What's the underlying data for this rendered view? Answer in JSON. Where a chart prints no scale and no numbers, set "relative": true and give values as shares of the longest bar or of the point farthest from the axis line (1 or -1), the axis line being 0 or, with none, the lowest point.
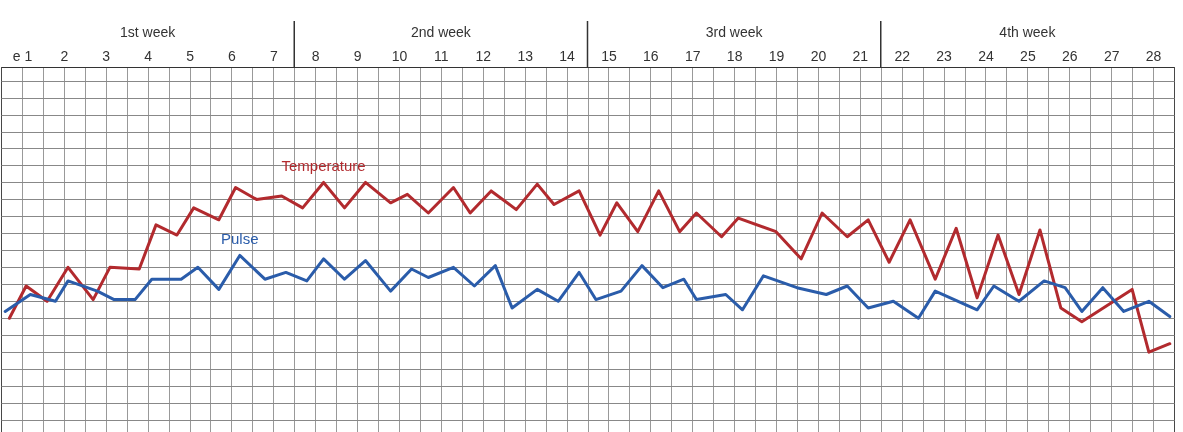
{
  "chart_data": {
    "type": "line",
    "relative": true,
    "grid": true,
    "xlim": [
      0.5,
      28.5
    ],
    "xticks": [
      {
        "value": 0.5,
        "label": null
      },
      {
        "value": 1,
        "label": "e 1"
      },
      {
        "value": 1.5,
        "label": null
      },
      2,
      {
        "value": 2.5,
        "label": null
      },
      3,
      {
        "value": 3.5,
        "label": null
      },
      4,
      {
        "value": 4.5,
        "label": null
      },
      5,
      {
        "value": 5.5,
        "label": null
      },
      6,
      {
        "value": 6.5,
        "label": null
      },
      7,
      {
        "value": 7.5,
        "label": null
      },
      8,
      {
        "value": 8.5,
        "label": null
      },
      9,
      {
        "value": 9.5,
        "label": null
      },
      10,
      {
        "value": 10.5,
        "label": null
      },
      11,
      {
        "value": 11.5,
        "label": null
      },
      12,
      {
        "value": 12.5,
        "label": null
      },
      13,
      {
        "value": 13.5,
        "label": null
      },
      14,
      {
        "value": 14.5,
        "label": null
      },
      15,
      {
        "value": 15.5,
        "label": null
      },
      16,
      {
        "value": 16.5,
        "label": null
      },
      17,
      {
        "value": 17.5,
        "label": null
      },
      18,
      {
        "value": 18.5,
        "label": null
      },
      19,
      {
        "value": 19.5,
        "label": null
      },
      20,
      {
        "value": 20.5,
        "label": null
      },
      21,
      {
        "value": 21.5,
        "label": null
      },
      22,
      {
        "value": 22.5,
        "label": null
      },
      23,
      {
        "value": 23.5,
        "label": null
      },
      24,
      {
        "value": 24.5,
        "label": null
      },
      25,
      {
        "value": 25.5,
        "label": null
      },
      26,
      {
        "value": 26.5,
        "label": null
      },
      27,
      {
        "value": 27.5,
        "label": null
      },
      28,
      {
        "value": 28.5,
        "label": null
      }
    ],
    "annotations": [
      "1st week",
      "2nd week",
      "3rd week",
      "4th week"
    ],
    "series": [
      {
        "name": "Temperature",
        "color": "#b22a2e",
        "x": [
          0.7,
          1.1,
          1.6,
          2.1,
          2.7,
          3.1,
          3.8,
          4.2,
          4.7,
          5.1,
          5.7,
          6.1,
          6.6,
          7.2,
          7.7,
          8.2,
          8.7,
          9.2,
          9.8,
          10.2,
          10.7,
          11.3,
          11.7,
          12.2,
          12.8,
          13.3,
          13.7,
          14.3,
          14.8,
          15.2,
          15.7,
          16.2,
          16.7,
          17.1,
          17.7,
          18.1,
          19.0,
          19.6,
          20.1,
          20.7,
          21.2,
          21.7,
          22.2,
          22.8,
          23.3,
          23.8,
          24.3,
          24.8,
          25.3,
          25.8,
          26.3,
          27.5,
          27.9,
          28.4
        ],
        "values": [
          0.2,
          0.39,
          0.3,
          0.5,
          0.31,
          0.5,
          0.49,
          0.75,
          0.69,
          0.85,
          0.78,
          0.97,
          0.9,
          0.92,
          0.85,
          1.0,
          0.85,
          1.0,
          0.88,
          0.93,
          0.82,
          0.97,
          0.82,
          0.95,
          0.84,
          0.99,
          0.87,
          0.95,
          0.69,
          0.88,
          0.71,
          0.95,
          0.71,
          0.82,
          0.68,
          0.79,
          0.71,
          0.55,
          0.82,
          0.68,
          0.78,
          0.53,
          0.78,
          0.43,
          0.73,
          0.32,
          0.69,
          0.34,
          0.72,
          0.26,
          0.18,
          0.37,
          0,
          0.05
        ]
      },
      {
        "name": "Pulse",
        "color": "#2a5caa",
        "x": [
          0.6,
          1.2,
          1.8,
          2.1,
          2.8,
          3.2,
          3.7,
          4.1,
          4.8,
          5.2,
          5.7,
          6.2,
          6.8,
          7.3,
          7.8,
          8.2,
          8.7,
          9.2,
          9.8,
          10.3,
          10.7,
          11.3,
          11.8,
          12.3,
          12.7,
          13.3,
          13.8,
          14.3,
          14.7,
          15.3,
          15.8,
          16.3,
          16.8,
          17.1,
          17.8,
          18.2,
          18.7,
          19.5,
          20.2,
          20.7,
          21.2,
          21.8,
          22.4,
          22.8,
          23.8,
          24.2,
          24.8,
          25.4,
          25.9,
          26.3,
          26.8,
          27.3,
          27.9,
          28.4
        ],
        "values": [
          0.24,
          0.34,
          0.3,
          0.42,
          0.36,
          0.31,
          0.31,
          0.43,
          0.43,
          0.5,
          0.37,
          0.57,
          0.43,
          0.47,
          0.42,
          0.55,
          0.43,
          0.54,
          0.36,
          0.49,
          0.44,
          0.5,
          0.39,
          0.51,
          0.26,
          0.37,
          0.3,
          0.47,
          0.31,
          0.36,
          0.51,
          0.38,
          0.43,
          0.31,
          0.34,
          0.25,
          0.45,
          0.38,
          0.34,
          0.39,
          0.26,
          0.3,
          0.2,
          0.36,
          0.25,
          0.39,
          0.3,
          0.42,
          0.38,
          0.24,
          0.38,
          0.24,
          0.3,
          0.21
        ]
      }
    ]
  }
}
